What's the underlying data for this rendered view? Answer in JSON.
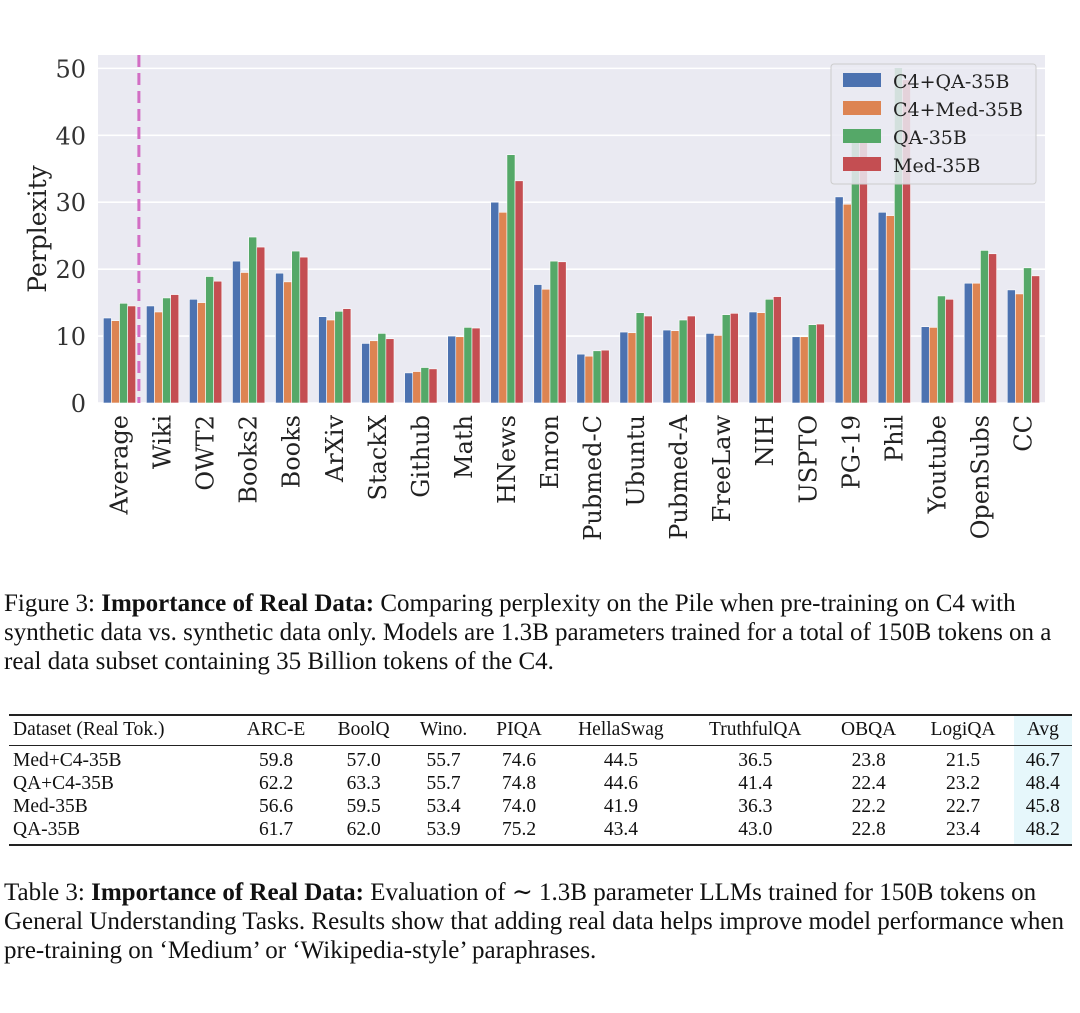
{
  "chart_data": {
    "type": "bar",
    "ylabel": "Perplexity",
    "ylim": [
      0,
      52
    ],
    "yticks": [
      0,
      10,
      20,
      30,
      40,
      50
    ],
    "grid": true,
    "legend_position": "top-right",
    "categories": [
      "Average",
      "Wiki",
      "OWT2",
      "Books2",
      "Books",
      "ArXiv",
      "StackX",
      "Github",
      "Math",
      "HNews",
      "Enron",
      "Pubmed-C",
      "Ubuntu",
      "Pubmed-A",
      "FreeLaw",
      "NIH",
      "USPTO",
      "PG-19",
      "Phil",
      "Youtube",
      "OpenSubs",
      "CC"
    ],
    "series": [
      {
        "name": "C4+QA-35B",
        "color": "#4c72b0",
        "values": [
          12.7,
          14.5,
          15.5,
          21.2,
          19.4,
          12.9,
          8.9,
          4.5,
          10.0,
          30.0,
          17.7,
          7.3,
          10.6,
          10.9,
          10.4,
          13.6,
          9.9,
          30.8,
          28.5,
          11.4,
          17.9,
          16.9
        ]
      },
      {
        "name": "C4+Med-35B",
        "color": "#dd8452",
        "values": [
          12.3,
          13.6,
          15.0,
          19.5,
          18.1,
          12.4,
          9.3,
          4.7,
          9.9,
          28.5,
          17.0,
          7.0,
          10.5,
          10.8,
          10.1,
          13.5,
          9.9,
          29.7,
          28.0,
          11.3,
          17.9,
          16.3
        ]
      },
      {
        "name": "QA-35B",
        "color": "#55a868",
        "values": [
          14.9,
          15.7,
          18.9,
          24.8,
          22.7,
          13.7,
          10.4,
          5.3,
          11.3,
          37.1,
          21.2,
          7.8,
          13.5,
          12.4,
          13.2,
          15.5,
          11.7,
          40.8,
          50.1,
          16.0,
          22.8,
          20.2
        ]
      },
      {
        "name": "Med-35B",
        "color": "#c44e52",
        "values": [
          14.5,
          16.2,
          18.2,
          23.3,
          21.8,
          14.1,
          9.6,
          5.1,
          11.2,
          33.2,
          21.1,
          7.9,
          13.0,
          13.0,
          13.4,
          15.9,
          11.8,
          40.5,
          48.3,
          15.5,
          22.3,
          19.0
        ]
      }
    ]
  },
  "figure_caption": {
    "label": "Figure 3:",
    "bold": "Importance of Real Data:",
    "text": "Comparing perplexity on the Pile when pre-training on C4 with synthetic data vs. synthetic data only. Models are 1.3B parameters trained for a total of 150B tokens on a real data subset containing 35 Billion tokens of the C4."
  },
  "table": {
    "headers": [
      "Dataset (Real Tok.)",
      "ARC-E",
      "BoolQ",
      "Wino.",
      "PIQA",
      "HellaSwag",
      "TruthfulQA",
      "OBQA",
      "LogiQA",
      "Avg"
    ],
    "rows": [
      [
        "Med+C4-35B",
        "59.8",
        "57.0",
        "55.7",
        "74.6",
        "44.5",
        "36.5",
        "23.8",
        "21.5",
        "46.7"
      ],
      [
        "QA+C4-35B",
        "62.2",
        "63.3",
        "55.7",
        "74.8",
        "44.6",
        "41.4",
        "22.4",
        "23.2",
        "48.4"
      ],
      [
        "Med-35B",
        "56.6",
        "59.5",
        "53.4",
        "74.0",
        "41.9",
        "36.3",
        "22.2",
        "22.7",
        "45.8"
      ],
      [
        "QA-35B",
        "61.7",
        "62.0",
        "53.9",
        "75.2",
        "43.4",
        "43.0",
        "22.8",
        "23.4",
        "48.2"
      ]
    ]
  },
  "table_caption": {
    "label": "Table 3:",
    "bold": "Importance of Real Data:",
    "text": "Evaluation of ∼ 1.3B parameter LLMs trained for 150B tokens on General Understanding Tasks. Results show that adding real data helps improve model performance when pre-training on ‘Medium’ or ‘Wikipedia-style’ paraphrases."
  }
}
